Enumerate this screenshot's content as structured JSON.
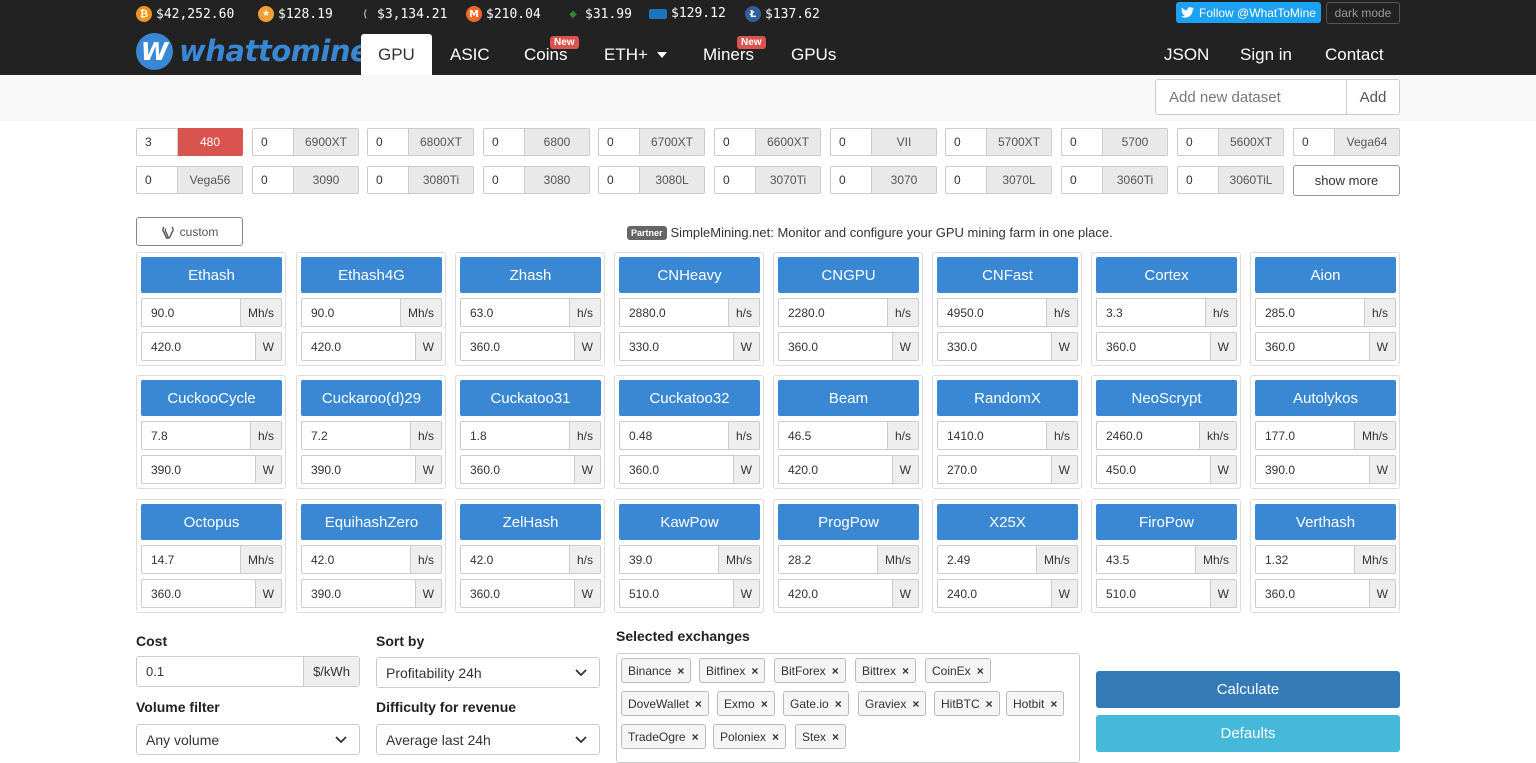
{
  "tickers": [
    {
      "name": "bitcoin-icon",
      "glyph": "₿",
      "color": "#f7931a",
      "price": "$42,252.60"
    },
    {
      "name": "ethereum-classic... ",
      "glyph": "",
      "color": "#f0a030",
      "price": "$128.19"
    },
    {
      "name": "ethereum-icon",
      "glyph": "",
      "color": "#555",
      "price": "$3,134.21"
    },
    {
      "name": "monero-icon",
      "glyph": "M",
      "color": "#f26822",
      "price": "$210.04"
    },
    {
      "name": "ethereum-classic-icon",
      "glyph": "",
      "color": "#328432",
      "price": "$31.99"
    },
    {
      "name": "dash-icon",
      "glyph": "",
      "color": "#1c75bc",
      "price": "$129.12"
    },
    {
      "name": "litecoin-icon",
      "glyph": "Ł",
      "color": "#345d9d",
      "price": "$137.62"
    }
  ],
  "social": {
    "follow": "Follow @WhatToMine",
    "dark": "dark mode"
  },
  "logo": {
    "text": "whattomine",
    "letter": "W"
  },
  "nav": {
    "gpu": "GPU",
    "asic": "ASIC",
    "coins": "Coins",
    "eth": "ETH+",
    "miners": "Miners",
    "gpus": "GPUs",
    "new_badge": "New",
    "json": "JSON",
    "signin": "Sign in",
    "contact": "Contact"
  },
  "dataset": {
    "placeholder": "Add new dataset",
    "add": "Add"
  },
  "gpus_row1": [
    {
      "count": "3",
      "label": "480",
      "selected": true
    },
    {
      "count": "0",
      "label": "6900XT"
    },
    {
      "count": "0",
      "label": "6800XT"
    },
    {
      "count": "0",
      "label": "6800"
    },
    {
      "count": "0",
      "label": "6700XT"
    },
    {
      "count": "0",
      "label": "6600XT"
    },
    {
      "count": "0",
      "label": "VII"
    },
    {
      "count": "0",
      "label": "5700XT"
    },
    {
      "count": "0",
      "label": "5700"
    },
    {
      "count": "0",
      "label": "5600XT"
    },
    {
      "count": "0",
      "label": "Vega64"
    }
  ],
  "gpus_row2": [
    {
      "count": "0",
      "label": "Vega56"
    },
    {
      "count": "0",
      "label": "3090"
    },
    {
      "count": "0",
      "label": "3080Ti"
    },
    {
      "count": "0",
      "label": "3080"
    },
    {
      "count": "0",
      "label": "3080L"
    },
    {
      "count": "0",
      "label": "3070Ti"
    },
    {
      "count": "0",
      "label": "3070"
    },
    {
      "count": "0",
      "label": "3070L"
    },
    {
      "count": "0",
      "label": "3060Ti"
    },
    {
      "count": "0",
      "label": "3060TiL"
    }
  ],
  "show_more": "show more",
  "custom": "custom",
  "partner": {
    "badge": "Partner",
    "text": "SimpleMining.net: Monitor and configure your GPU mining farm in one place."
  },
  "algorithms": [
    {
      "name": "Ethash",
      "hash": "90.0",
      "unit": "Mh/s",
      "power": "420.0",
      "punit": "W"
    },
    {
      "name": "Ethash4G",
      "hash": "90.0",
      "unit": "Mh/s",
      "power": "420.0",
      "punit": "W"
    },
    {
      "name": "Zhash",
      "hash": "63.0",
      "unit": "h/s",
      "power": "360.0",
      "punit": "W"
    },
    {
      "name": "CNHeavy",
      "hash": "2880.0",
      "unit": "h/s",
      "power": "330.0",
      "punit": "W"
    },
    {
      "name": "CNGPU",
      "hash": "2280.0",
      "unit": "h/s",
      "power": "360.0",
      "punit": "W"
    },
    {
      "name": "CNFast",
      "hash": "4950.0",
      "unit": "h/s",
      "power": "330.0",
      "punit": "W"
    },
    {
      "name": "Cortex",
      "hash": "3.3",
      "unit": "h/s",
      "power": "360.0",
      "punit": "W"
    },
    {
      "name": "Aion",
      "hash": "285.0",
      "unit": "h/s",
      "power": "360.0",
      "punit": "W"
    },
    {
      "name": "CuckooCycle",
      "hash": "7.8",
      "unit": "h/s",
      "power": "390.0",
      "punit": "W"
    },
    {
      "name": "Cuckaroo(d)29",
      "hash": "7.2",
      "unit": "h/s",
      "power": "390.0",
      "punit": "W"
    },
    {
      "name": "Cuckatoo31",
      "hash": "1.8",
      "unit": "h/s",
      "power": "360.0",
      "punit": "W"
    },
    {
      "name": "Cuckatoo32",
      "hash": "0.48",
      "unit": "h/s",
      "power": "360.0",
      "punit": "W"
    },
    {
      "name": "Beam",
      "hash": "46.5",
      "unit": "h/s",
      "power": "420.0",
      "punit": "W"
    },
    {
      "name": "RandomX",
      "hash": "1410.0",
      "unit": "h/s",
      "power": "270.0",
      "punit": "W"
    },
    {
      "name": "NeoScrypt",
      "hash": "2460.0",
      "unit": "kh/s",
      "power": "450.0",
      "punit": "W"
    },
    {
      "name": "Autolykos",
      "hash": "177.0",
      "unit": "Mh/s",
      "power": "390.0",
      "punit": "W"
    },
    {
      "name": "Octopus",
      "hash": "14.7",
      "unit": "Mh/s",
      "power": "360.0",
      "punit": "W"
    },
    {
      "name": "EquihashZero",
      "hash": "42.0",
      "unit": "h/s",
      "power": "390.0",
      "punit": "W"
    },
    {
      "name": "ZelHash",
      "hash": "42.0",
      "unit": "h/s",
      "power": "360.0",
      "punit": "W"
    },
    {
      "name": "KawPow",
      "hash": "39.0",
      "unit": "Mh/s",
      "power": "510.0",
      "punit": "W"
    },
    {
      "name": "ProgPow",
      "hash": "28.2",
      "unit": "Mh/s",
      "power": "420.0",
      "punit": "W"
    },
    {
      "name": "X25X",
      "hash": "2.49",
      "unit": "Mh/s",
      "power": "240.0",
      "punit": "W"
    },
    {
      "name": "FiroPow",
      "hash": "43.5",
      "unit": "Mh/s",
      "power": "510.0",
      "punit": "W"
    },
    {
      "name": "Verthash",
      "hash": "1.32",
      "unit": "Mh/s",
      "power": "360.0",
      "punit": "W"
    }
  ],
  "cost": {
    "label": "Cost",
    "value": "0.1",
    "unit": "$/kWh"
  },
  "volume": {
    "label": "Volume filter",
    "value": "Any volume"
  },
  "sortby": {
    "label": "Sort by",
    "value": "Profitability 24h"
  },
  "difficulty": {
    "label": "Difficulty for revenue",
    "value": "Average last 24h"
  },
  "exchanges": {
    "label": "Selected exchanges",
    "tags": [
      "Binance",
      "Bitfinex",
      "BitForex",
      "Bittrex",
      "CoinEx",
      "DoveWallet",
      "Exmo",
      "Gate.io",
      "Graviex",
      "HitBTC",
      "Hotbit",
      "TradeOgre",
      "Poloniex",
      "Stex"
    ],
    "remove": "×"
  },
  "actions": {
    "calculate": "Calculate",
    "defaults": "Defaults"
  }
}
